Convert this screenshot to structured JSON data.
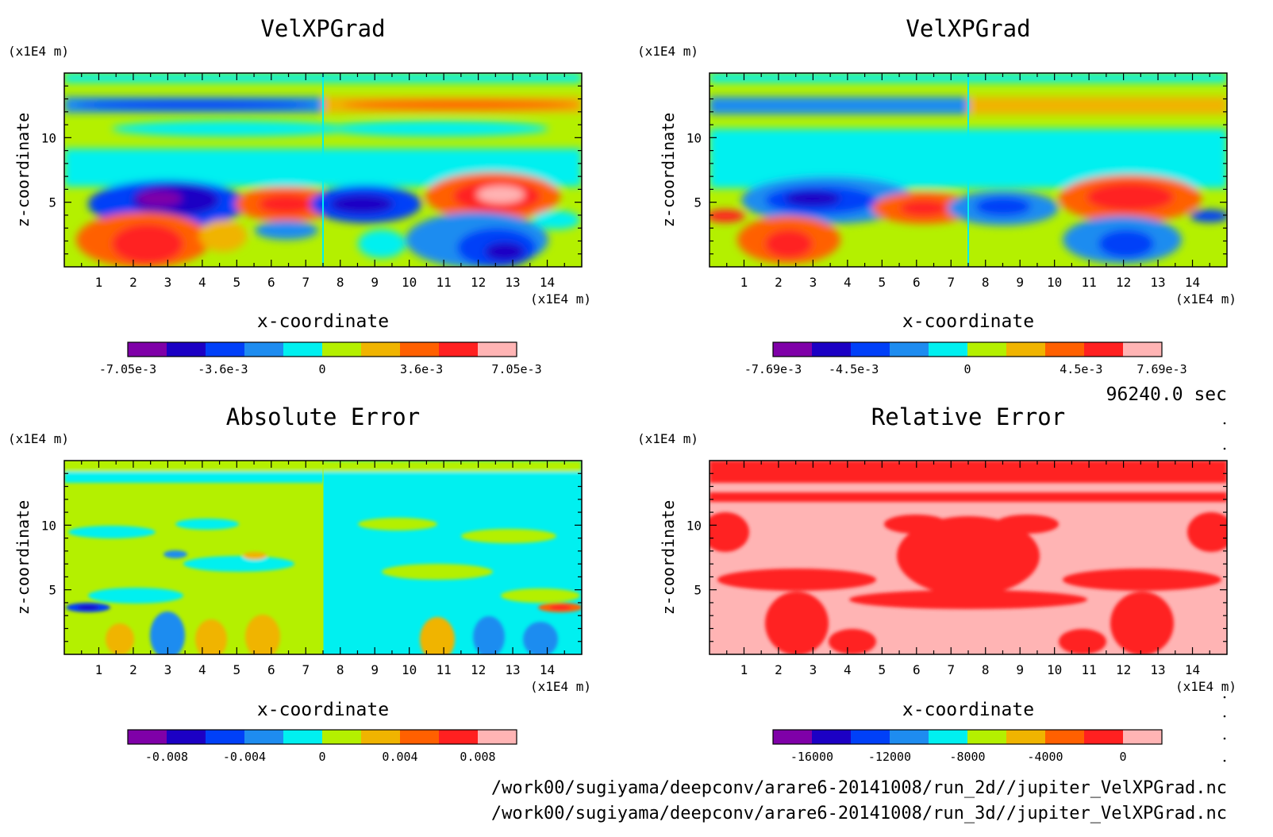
{
  "time_label": "96240.0 sec",
  "file_paths": [
    "/work00/sugiyama/deepconv/arare6-20141008/run_2d//jupiter_VelXPGrad.nc",
    "/work00/sugiyama/deepconv/arare6-20141008/run_3d//jupiter_VelXPGrad.nc"
  ],
  "palette": [
    "#7f00a8",
    "#1c00c4",
    "#0040f8",
    "#1e8cf0",
    "#00f0f0",
    "#b4f000",
    "#f0b400",
    "#ff6000",
    "#ff2020",
    "#ffb4b4"
  ],
  "chart_data": [
    {
      "type": "heatmap",
      "title": "VelXPGrad",
      "xlabel": "x-coordinate",
      "ylabel": "z-coordinate",
      "x_unit": "(x1E4 m)",
      "y_unit": "(x1E4 m)",
      "xlim": [
        0,
        15
      ],
      "ylim": [
        0,
        15
      ],
      "x_ticks": [
        "1",
        "2",
        "3",
        "4",
        "5",
        "6",
        "7",
        "8",
        "9",
        "10",
        "11",
        "12",
        "13",
        "14"
      ],
      "y_ticks": [
        "5",
        "10"
      ],
      "colorbar": {
        "min": -0.00705,
        "max": 0.00705,
        "labels": [
          "-7.05e-3",
          "-3.6e-3",
          "0",
          "3.6e-3",
          "7.05e-3"
        ],
        "label_values": [
          -0.00705,
          -0.0036,
          0,
          0.0036,
          0.00705
        ]
      },
      "features": [
        {
          "x": 2.8,
          "z": 5.0,
          "value": -0.0062
        },
        {
          "x": 6.3,
          "z": 4.8,
          "value": 0.005
        },
        {
          "x": 9.0,
          "z": 4.8,
          "value": -0.005
        },
        {
          "x": 12.3,
          "z": 5.3,
          "value": 0.0065
        },
        {
          "x": 3.0,
          "z": 1.8,
          "value": 0.0045
        },
        {
          "x": 12.5,
          "z": 1.5,
          "value": -0.0045
        },
        {
          "x": 3.5,
          "z": 12.5,
          "value": -0.0025
        },
        {
          "x": 11.5,
          "z": 12.5,
          "value": 0.0025
        }
      ]
    },
    {
      "type": "heatmap",
      "title": "VelXPGrad",
      "xlabel": "x-coordinate",
      "ylabel": "z-coordinate",
      "x_unit": "(x1E4 m)",
      "y_unit": "(x1E4 m)",
      "xlim": [
        0,
        15
      ],
      "ylim": [
        0,
        15
      ],
      "x_ticks": [
        "1",
        "2",
        "3",
        "4",
        "5",
        "6",
        "7",
        "8",
        "9",
        "10",
        "11",
        "12",
        "13",
        "14"
      ],
      "y_ticks": [
        "5",
        "10"
      ],
      "colorbar": {
        "min": -0.00769,
        "max": 0.00769,
        "labels": [
          "-7.69e-3",
          "-4.5e-3",
          "0",
          "4.5e-3",
          "7.69e-3"
        ],
        "label_values": [
          -0.00769,
          -0.0045,
          0,
          0.0045,
          0.00769
        ]
      },
      "features": [
        {
          "x": 2.8,
          "z": 5.0,
          "value": -0.0058
        },
        {
          "x": 6.3,
          "z": 4.5,
          "value": 0.0048
        },
        {
          "x": 9.0,
          "z": 4.5,
          "value": -0.0048
        },
        {
          "x": 12.3,
          "z": 5.2,
          "value": 0.006
        },
        {
          "x": 2.8,
          "z": 2.0,
          "value": 0.004
        },
        {
          "x": 12.3,
          "z": 2.0,
          "value": -0.004
        }
      ]
    },
    {
      "type": "heatmap",
      "title": "Absolute Error",
      "xlabel": "x-coordinate",
      "ylabel": "z-coordinate",
      "x_unit": "(x1E4 m)",
      "y_unit": "(x1E4 m)",
      "xlim": [
        0,
        15
      ],
      "ylim": [
        0,
        15
      ],
      "x_ticks": [
        "1",
        "2",
        "3",
        "4",
        "5",
        "6",
        "7",
        "8",
        "9",
        "10",
        "11",
        "12",
        "13",
        "14"
      ],
      "y_ticks": [
        "5",
        "10"
      ],
      "colorbar": {
        "min": -0.01,
        "max": 0.01,
        "labels": [
          "-0.008",
          "-0.004",
          "0",
          "0.004",
          "0.008"
        ],
        "label_values": [
          -0.008,
          -0.004,
          0,
          0.004,
          0.008
        ]
      },
      "features": [
        {
          "x": 0.8,
          "z": 3.8,
          "value": -0.007
        },
        {
          "x": 14.2,
          "z": 3.8,
          "value": 0.007
        },
        {
          "x": 3.0,
          "z": 1.5,
          "value": -0.004
        },
        {
          "x": 4.2,
          "z": 1.5,
          "value": 0.004
        },
        {
          "x": 10.8,
          "z": 1.5,
          "value": 0.004
        },
        {
          "x": 12.0,
          "z": 1.5,
          "value": -0.004
        }
      ]
    },
    {
      "type": "heatmap",
      "title": "Relative Error",
      "xlabel": "x-coordinate",
      "ylabel": "z-coordinate",
      "x_unit": "(x1E4 m)",
      "y_unit": "(x1E4 m)",
      "xlim": [
        0,
        15
      ],
      "ylim": [
        0,
        15
      ],
      "x_ticks": [
        "1",
        "2",
        "3",
        "4",
        "5",
        "6",
        "7",
        "8",
        "9",
        "10",
        "11",
        "12",
        "13",
        "14"
      ],
      "y_ticks": [
        "5",
        "10"
      ],
      "colorbar": {
        "min": -18000,
        "max": 2000,
        "labels": [
          "-16000",
          "-12000",
          "-8000",
          "-4000",
          "0"
        ],
        "label_values": [
          -16000,
          -12000,
          -8000,
          -4000,
          0
        ]
      },
      "field_values": {
        "dominant": 2000,
        "secondary": 0
      }
    }
  ]
}
